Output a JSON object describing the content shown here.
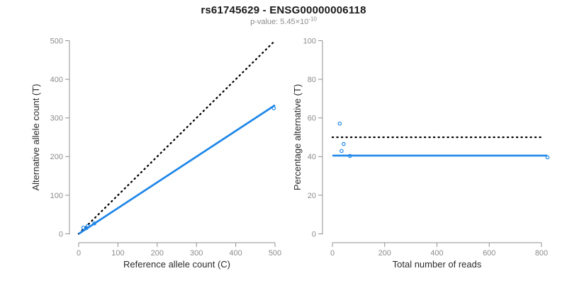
{
  "header": {
    "title": "rs61745629 - ENSG00000006118",
    "pvalue_label": "p-value: 5.45",
    "pvalue_times10": "×10",
    "pvalue_exponent": "-10"
  },
  "colors": {
    "accent": "#1E86E8",
    "black": "#000000",
    "axis": "#909090",
    "tick_label": "#8c8c8c",
    "axis_title": "#2b2b2b",
    "title": "#1a1a1a",
    "subtitle": "#8c8c8c",
    "background": "#ffffff"
  },
  "chart_data": [
    {
      "name": "allele-count-plot",
      "type": "scatter",
      "title": "",
      "xlabel": "Reference allele count (C)",
      "ylabel": "Alternative allele count (T)",
      "xlim": [
        0,
        500
      ],
      "ylim": [
        0,
        500
      ],
      "xticks": [
        0,
        100,
        200,
        300,
        400,
        500
      ],
      "yticks": [
        0,
        100,
        200,
        300,
        400,
        500
      ],
      "grid": false,
      "legend": null,
      "points": [
        [
          12,
          16
        ],
        [
          20,
          15
        ],
        [
          23,
          20
        ],
        [
          40,
          27
        ],
        [
          497,
          325
        ]
      ],
      "lines": [
        {
          "role": "identity-line",
          "style": "dotted",
          "color": "black",
          "from": [
            0,
            0
          ],
          "to": [
            500,
            500
          ]
        },
        {
          "role": "fit-line",
          "style": "solid",
          "color": "accent",
          "from": [
            0,
            0
          ],
          "to": [
            500,
            333
          ]
        }
      ]
    },
    {
      "name": "percentage-plot",
      "type": "scatter",
      "title": "",
      "xlabel": "Total number of reads",
      "ylabel": "Percentage alternative (T)",
      "xlim": [
        0,
        800
      ],
      "ylim": [
        0,
        100
      ],
      "xticks": [
        0,
        200,
        400,
        600,
        800
      ],
      "yticks": [
        0,
        20,
        40,
        60,
        80,
        100
      ],
      "grid": false,
      "legend": null,
      "points": [
        [
          28,
          57.1
        ],
        [
          35,
          42.9
        ],
        [
          43,
          46.5
        ],
        [
          67,
          40.3
        ],
        [
          823,
          39.6
        ]
      ],
      "lines": [
        {
          "role": "fifty-percent-line",
          "style": "dotted",
          "color": "black",
          "from": [
            0,
            50
          ],
          "to": [
            810,
            50
          ]
        },
        {
          "role": "fit-line",
          "style": "solid",
          "color": "accent",
          "from": [
            0,
            40.5
          ],
          "to": [
            822,
            40.5
          ]
        }
      ]
    }
  ]
}
